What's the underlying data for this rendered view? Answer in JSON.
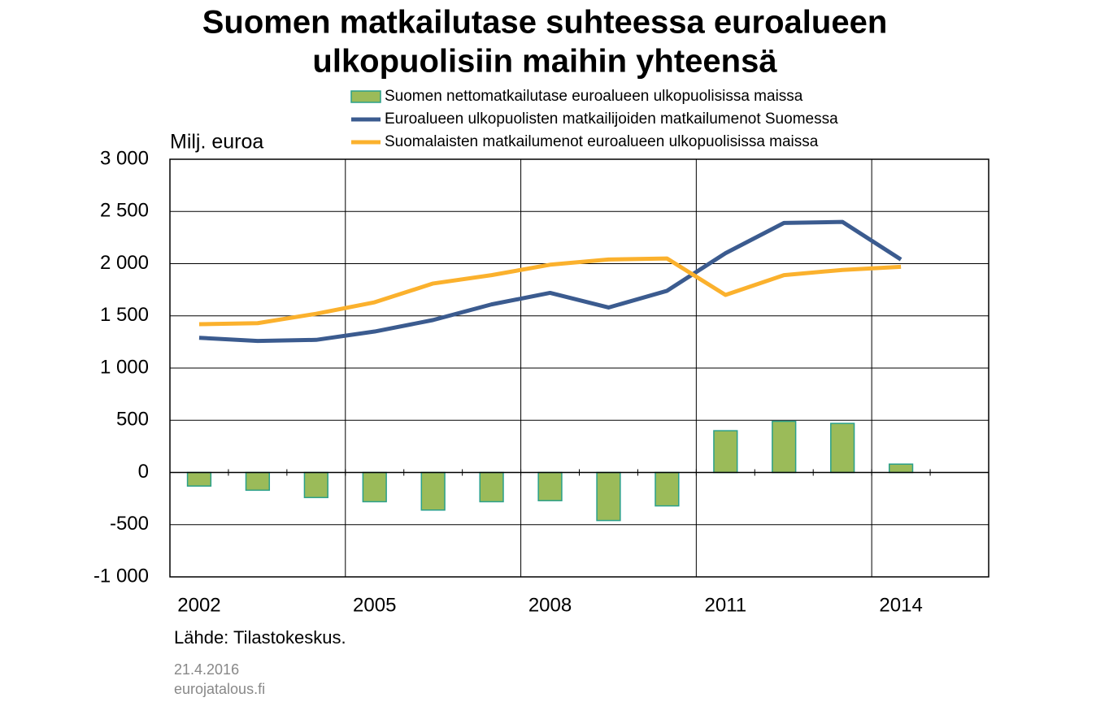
{
  "chart_data": {
    "type": "bar-line",
    "title": [
      "Suomen matkailutase suhteessa euroalueen",
      "ulkopuolisiin maihin yhteensä"
    ],
    "y_label": "Milj. euroa",
    "source": "Lähde: Tilastokeskus.",
    "date": "21.4.2016",
    "site": "eurojatalous.fi",
    "categories": [
      "2002",
      null,
      null,
      "2005",
      null,
      null,
      "2008",
      null,
      null,
      "2011",
      null,
      null,
      "2014",
      null
    ],
    "series": [
      {
        "name": "Suomen nettomatkailutase euroalueen ulkopuolisissa maissa",
        "kind": "bar",
        "color": "#9bbb59",
        "edge": "#2aa08a",
        "values": [
          -130,
          -170,
          -240,
          -280,
          -360,
          -280,
          -270,
          -460,
          -320,
          400,
          490,
          470,
          80,
          null
        ]
      },
      {
        "name": "Euroalueen ulkopuolisten matkailijoiden matkailumenot Suomessa",
        "kind": "line",
        "color": "#3b5b8f",
        "values": [
          1290,
          1260,
          1270,
          1350,
          1460,
          1610,
          1720,
          1580,
          1740,
          2100,
          2390,
          2400,
          2040,
          null
        ]
      },
      {
        "name": "Suomalaisten matkailumenot euroalueen ulkopuolisissa maissa",
        "kind": "line",
        "color": "#fbb12d",
        "values": [
          1420,
          1430,
          1520,
          1630,
          1810,
          1890,
          1990,
          2040,
          2050,
          1700,
          1890,
          1940,
          1970,
          null
        ]
      }
    ],
    "ylim": [
      -1000,
      3000
    ],
    "yticks": [
      {
        "value": -1000,
        "label": "-1 000"
      },
      -500,
      0,
      500,
      {
        "value": 1000,
        "label": "1 000"
      },
      {
        "value": 1500,
        "label": "1 500"
      },
      {
        "value": 2000,
        "label": "2 000"
      },
      {
        "value": 2500,
        "label": "2 500"
      },
      {
        "value": 3000,
        "label": "3 000"
      }
    ],
    "grid": true
  }
}
